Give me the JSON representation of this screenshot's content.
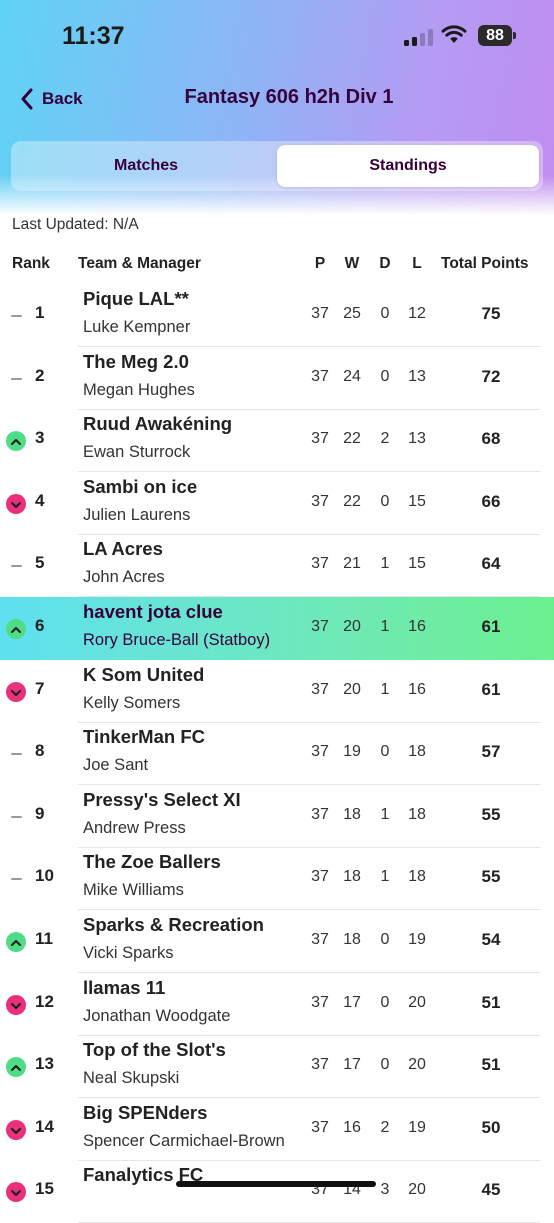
{
  "status_bar": {
    "time": "11:37",
    "battery": "88"
  },
  "header": {
    "back_label": "Back",
    "title": "Fantasy 606 h2h Div 1"
  },
  "tabs": [
    {
      "label": "Matches",
      "active": false
    },
    {
      "label": "Standings",
      "active": true
    }
  ],
  "last_updated": "Last Updated: N/A",
  "columns": {
    "rank": "Rank",
    "team": "Team & Manager",
    "p": "P",
    "w": "W",
    "d": "D",
    "l": "L",
    "points": "Total Points"
  },
  "colors": {
    "up": "#4fdc86",
    "down": "#e8307c",
    "same": "#9a9a9a",
    "text": "#37003c"
  },
  "rows": [
    {
      "rank": "1",
      "move": "same",
      "team": "Pique LAL**",
      "manager": "Luke Kempner",
      "p": "37",
      "w": "25",
      "d": "0",
      "l": "12",
      "points": "75"
    },
    {
      "rank": "2",
      "move": "same",
      "team": "The Meg 2.0",
      "manager": "Megan Hughes",
      "p": "37",
      "w": "24",
      "d": "0",
      "l": "13",
      "points": "72"
    },
    {
      "rank": "3",
      "move": "up",
      "team": "Ruud Awakéning",
      "manager": "Ewan Sturrock",
      "p": "37",
      "w": "22",
      "d": "2",
      "l": "13",
      "points": "68"
    },
    {
      "rank": "4",
      "move": "down",
      "team": "Sambi on ice",
      "manager": "Julien Laurens",
      "p": "37",
      "w": "22",
      "d": "0",
      "l": "15",
      "points": "66"
    },
    {
      "rank": "5",
      "move": "same",
      "team": "LA Acres",
      "manager": "John Acres",
      "p": "37",
      "w": "21",
      "d": "1",
      "l": "15",
      "points": "64"
    },
    {
      "rank": "6",
      "move": "up",
      "team": "havent jota clue",
      "manager": "Rory Bruce-Ball (Statboy)",
      "p": "37",
      "w": "20",
      "d": "1",
      "l": "16",
      "points": "61",
      "highlight": true
    },
    {
      "rank": "7",
      "move": "down",
      "team": "K Som United",
      "manager": "Kelly Somers",
      "p": "37",
      "w": "20",
      "d": "1",
      "l": "16",
      "points": "61"
    },
    {
      "rank": "8",
      "move": "same",
      "team": "TinkerMan FC",
      "manager": "Joe Sant",
      "p": "37",
      "w": "19",
      "d": "0",
      "l": "18",
      "points": "57"
    },
    {
      "rank": "9",
      "move": "same",
      "team": "Pressy's Select XI",
      "manager": "Andrew Press",
      "p": "37",
      "w": "18",
      "d": "1",
      "l": "18",
      "points": "55"
    },
    {
      "rank": "10",
      "move": "same",
      "team": "The Zoe Ballers",
      "manager": "Mike Williams",
      "p": "37",
      "w": "18",
      "d": "1",
      "l": "18",
      "points": "55"
    },
    {
      "rank": "11",
      "move": "up",
      "team": "Sparks & Recreation",
      "manager": "Vicki Sparks",
      "p": "37",
      "w": "18",
      "d": "0",
      "l": "19",
      "points": "54"
    },
    {
      "rank": "12",
      "move": "down",
      "team": "llamas 11",
      "manager": "Jonathan Woodgate",
      "p": "37",
      "w": "17",
      "d": "0",
      "l": "20",
      "points": "51"
    },
    {
      "rank": "13",
      "move": "up",
      "team": "Top of the Slot's",
      "manager": "Neal Skupski",
      "p": "37",
      "w": "17",
      "d": "0",
      "l": "20",
      "points": "51"
    },
    {
      "rank": "14",
      "move": "down",
      "team": "Big SPENders",
      "manager": "Spencer Carmichael-Brown",
      "p": "37",
      "w": "16",
      "d": "2",
      "l": "19",
      "points": "50"
    },
    {
      "rank": "15",
      "move": "down",
      "team": "Fanalytics FC",
      "manager": "",
      "p": "37",
      "w": "14",
      "d": "3",
      "l": "20",
      "points": "45"
    }
  ]
}
